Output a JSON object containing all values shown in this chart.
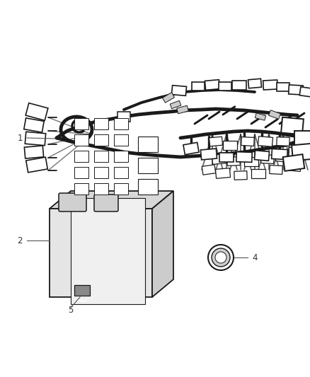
{
  "background_color": "#ffffff",
  "line_color": "#1a1a1a",
  "label_color": "#333333",
  "fig_width": 4.39,
  "fig_height": 5.33,
  "dpi": 100,
  "harness_lw": 3.5,
  "connector_lw": 1.2,
  "label_fontsize": 8.5
}
